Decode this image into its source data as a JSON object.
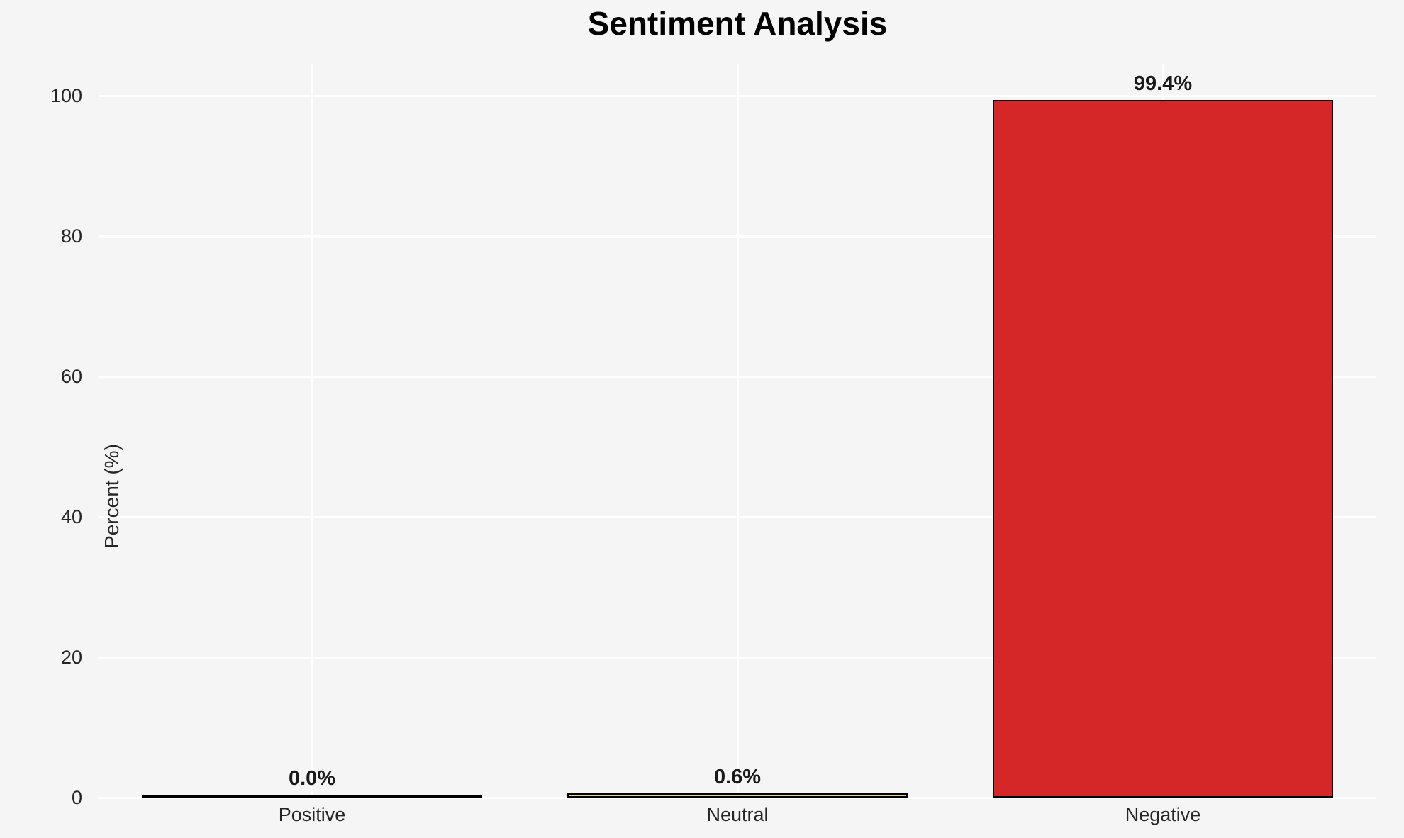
{
  "figure": {
    "background_color": "#f5f5f5",
    "grid_color": "#ffffff",
    "text_color": "#262626"
  },
  "chart_data": {
    "type": "bar",
    "title": "Sentiment Analysis",
    "xlabel": "",
    "ylabel": "Percent (%)",
    "categories": [
      "Positive",
      "Neutral",
      "Negative"
    ],
    "values": [
      0.0,
      0.6,
      99.4
    ],
    "bar_labels": [
      "0.0%",
      "0.6%",
      "99.4%"
    ],
    "bar_colors": [
      "#000000",
      "#ebd678",
      "#d62728"
    ],
    "bar_edge_color": "#000000",
    "yticks": [
      0,
      20,
      40,
      60,
      80,
      100
    ],
    "ylim": [
      0,
      105
    ],
    "grid": "both-white-on-gray",
    "legend": null
  }
}
